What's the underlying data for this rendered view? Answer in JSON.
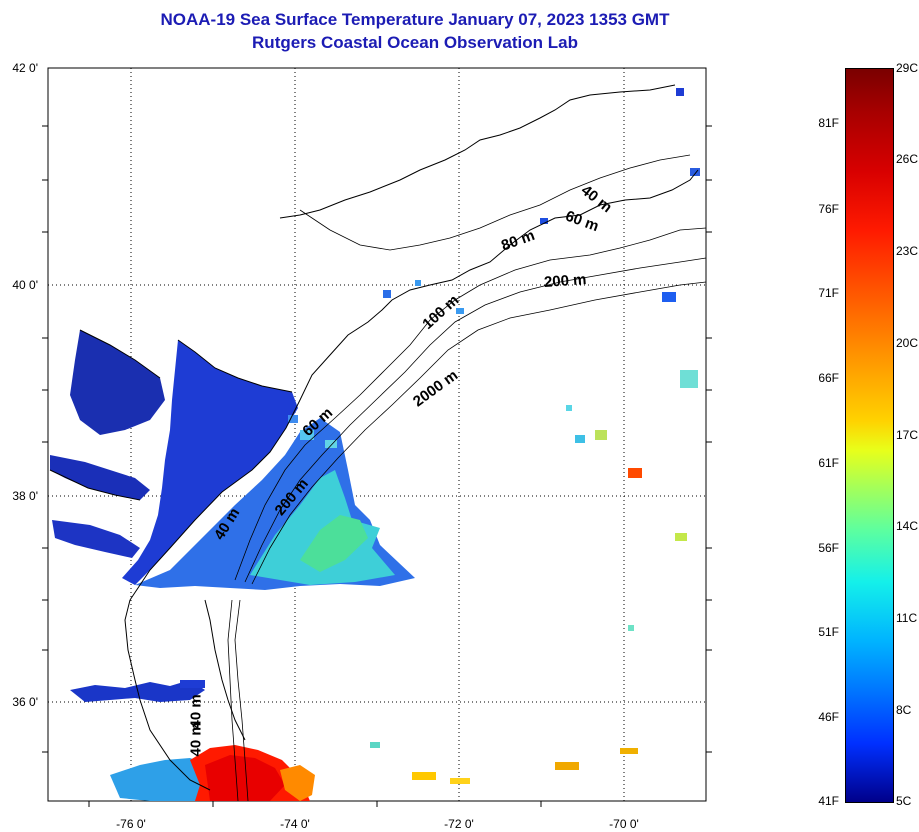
{
  "title": {
    "line1": "NOAA-19 Sea Surface Temperature January 07, 2023 1353 GMT",
    "line2": "Rutgers Coastal Ocean Observation Lab"
  },
  "latitude_labels": [
    "42 0'",
    "40 0'",
    "38 0'",
    "36 0'"
  ],
  "longitude_labels": [
    "-76 0'",
    "-74 0'",
    "-72 0'",
    "-70 0'"
  ],
  "depth_labels": {
    "d40_north": "40 m",
    "d60_north": "60 m",
    "d80_north": "80 m",
    "d200_north": "200 m",
    "d100": "100 m",
    "d2000": "2000 m",
    "d60_mid": "60 m",
    "d200_mid": "200 m",
    "d40_mid": "40 m",
    "d40_south": "40 m",
    "d40_south2": "40 m"
  },
  "colorbar": {
    "fahrenheit": [
      "81F",
      "76F",
      "71F",
      "66F",
      "61F",
      "56F",
      "51F",
      "46F",
      "41F"
    ],
    "celsius": [
      "29C",
      "26C",
      "23C",
      "20C",
      "17C",
      "14C",
      "11C",
      "8C",
      "5C"
    ],
    "range_c": [
      5,
      29
    ],
    "range_f": [
      41,
      84
    ],
    "colors": {
      "cold": "#00008a",
      "cool": "#0074ff",
      "mid": "#14f0ea",
      "warm": "#ffd200",
      "hot": "#ff1a00",
      "max": "#7a0000"
    }
  },
  "map": {
    "lat_range": [
      35,
      42
    ],
    "lon_range": [
      -77,
      -69
    ],
    "grid": true
  }
}
